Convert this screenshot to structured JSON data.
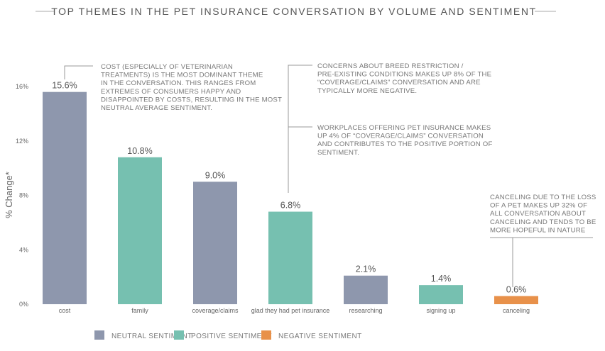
{
  "chart_data": {
    "type": "bar",
    "title": "TOP THEMES IN THE PET INSURANCE CONVERSATION BY VOLUME AND SENTIMENT",
    "ylabel": "% Change*",
    "xlabel": "",
    "ylim": [
      0,
      16
    ],
    "yticks": [
      "0%",
      "4%",
      "8%",
      "12%",
      "16%"
    ],
    "ytick_values": [
      0,
      4,
      8,
      12,
      16
    ],
    "grid": false,
    "categories": [
      "cost",
      "family",
      "coverage/claims",
      "glad they had pet insurance",
      "researching",
      "signing up",
      "canceling"
    ],
    "values": [
      15.6,
      10.8,
      9.0,
      6.8,
      2.1,
      1.4,
      0.6
    ],
    "value_labels": [
      "15.6%",
      "10.8%",
      "9.0%",
      "6.8%",
      "2.1%",
      "1.4%",
      "0.6%"
    ],
    "sentiment": [
      "neutral",
      "positive",
      "neutral",
      "positive",
      "neutral",
      "positive",
      "negative"
    ],
    "legend": {
      "position": "bottom",
      "items": [
        {
          "key": "neutral",
          "label": "NEUTRAL SENTIMENT",
          "color": "#8e97ad"
        },
        {
          "key": "positive",
          "label": "POSITIVE SENTIMENT",
          "color": "#76c0b0"
        },
        {
          "key": "negative",
          "label": "NEGATIVE SENTIMENT",
          "color": "#e8914a"
        }
      ]
    },
    "annotations": [
      {
        "target": "cost",
        "lines": [
          "COST (ESPECIALLY OF VETERINARIAN",
          "TREATMENTS) IS THE MOST DOMINANT THEME",
          "IN THE CONVERSATION. THIS RANGES FROM",
          "EXTREMES OF CONSUMERS HAPPY AND",
          "DISAPPOINTED BY COSTS, RESULTING IN THE MOST",
          "NEUTRAL AVERAGE SENTIMENT."
        ]
      },
      {
        "target": "coverage/claims",
        "lines": [
          "CONCERNS ABOUT BREED RESTRICTION /",
          "PRE-EXISTING CONDITIONS MAKES UP 8% OF THE",
          "“COVERAGE/CLAIMS” CONVERSATION  AND ARE",
          "TYPICALLY MORE NEGATIVE."
        ]
      },
      {
        "target": "coverage/claims",
        "lines": [
          "WORKPLACES OFFERING PET INSURANCE MAKES",
          "UP 4% OF “COVERAGE/CLAIMS” CONVERSATION",
          "AND CONTRIBUTES TO THE POSITIVE PORTION OF",
          "SENTIMENT."
        ]
      },
      {
        "target": "canceling",
        "lines": [
          "CANCELING DUE TO THE LOSS",
          "OF A PET MAKES UP 32% OF",
          "ALL CONVERSATION ABOUT",
          "CANCELING AND TENDS TO BE",
          "MORE HOPEFUL IN NATURE"
        ]
      }
    ]
  }
}
